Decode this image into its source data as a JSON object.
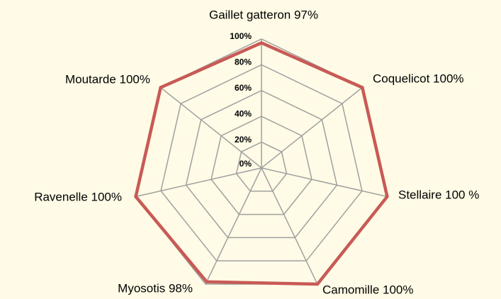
{
  "chart_data": {
    "type": "radar",
    "categories": [
      "Gaillet gatteron 97%",
      "Coquelicot 100%",
      "Stellaire 100 %",
      "Camomille 100%",
      "Myosotis 98%",
      "Ravenelle 100%",
      "Moutarde 100%"
    ],
    "values": [
      97,
      100,
      100,
      100,
      98,
      100,
      100
    ],
    "color": "#c85a55",
    "ylim": [
      0,
      100
    ],
    "yticks": [
      {
        "value": 0,
        "label": "0%"
      },
      {
        "value": 20,
        "label": "20%"
      },
      {
        "value": 40,
        "label": "40%"
      },
      {
        "value": 60,
        "label": "60%"
      },
      {
        "value": 80,
        "label": "80%"
      },
      {
        "value": 100,
        "label": "100%"
      }
    ],
    "grid": true
  }
}
